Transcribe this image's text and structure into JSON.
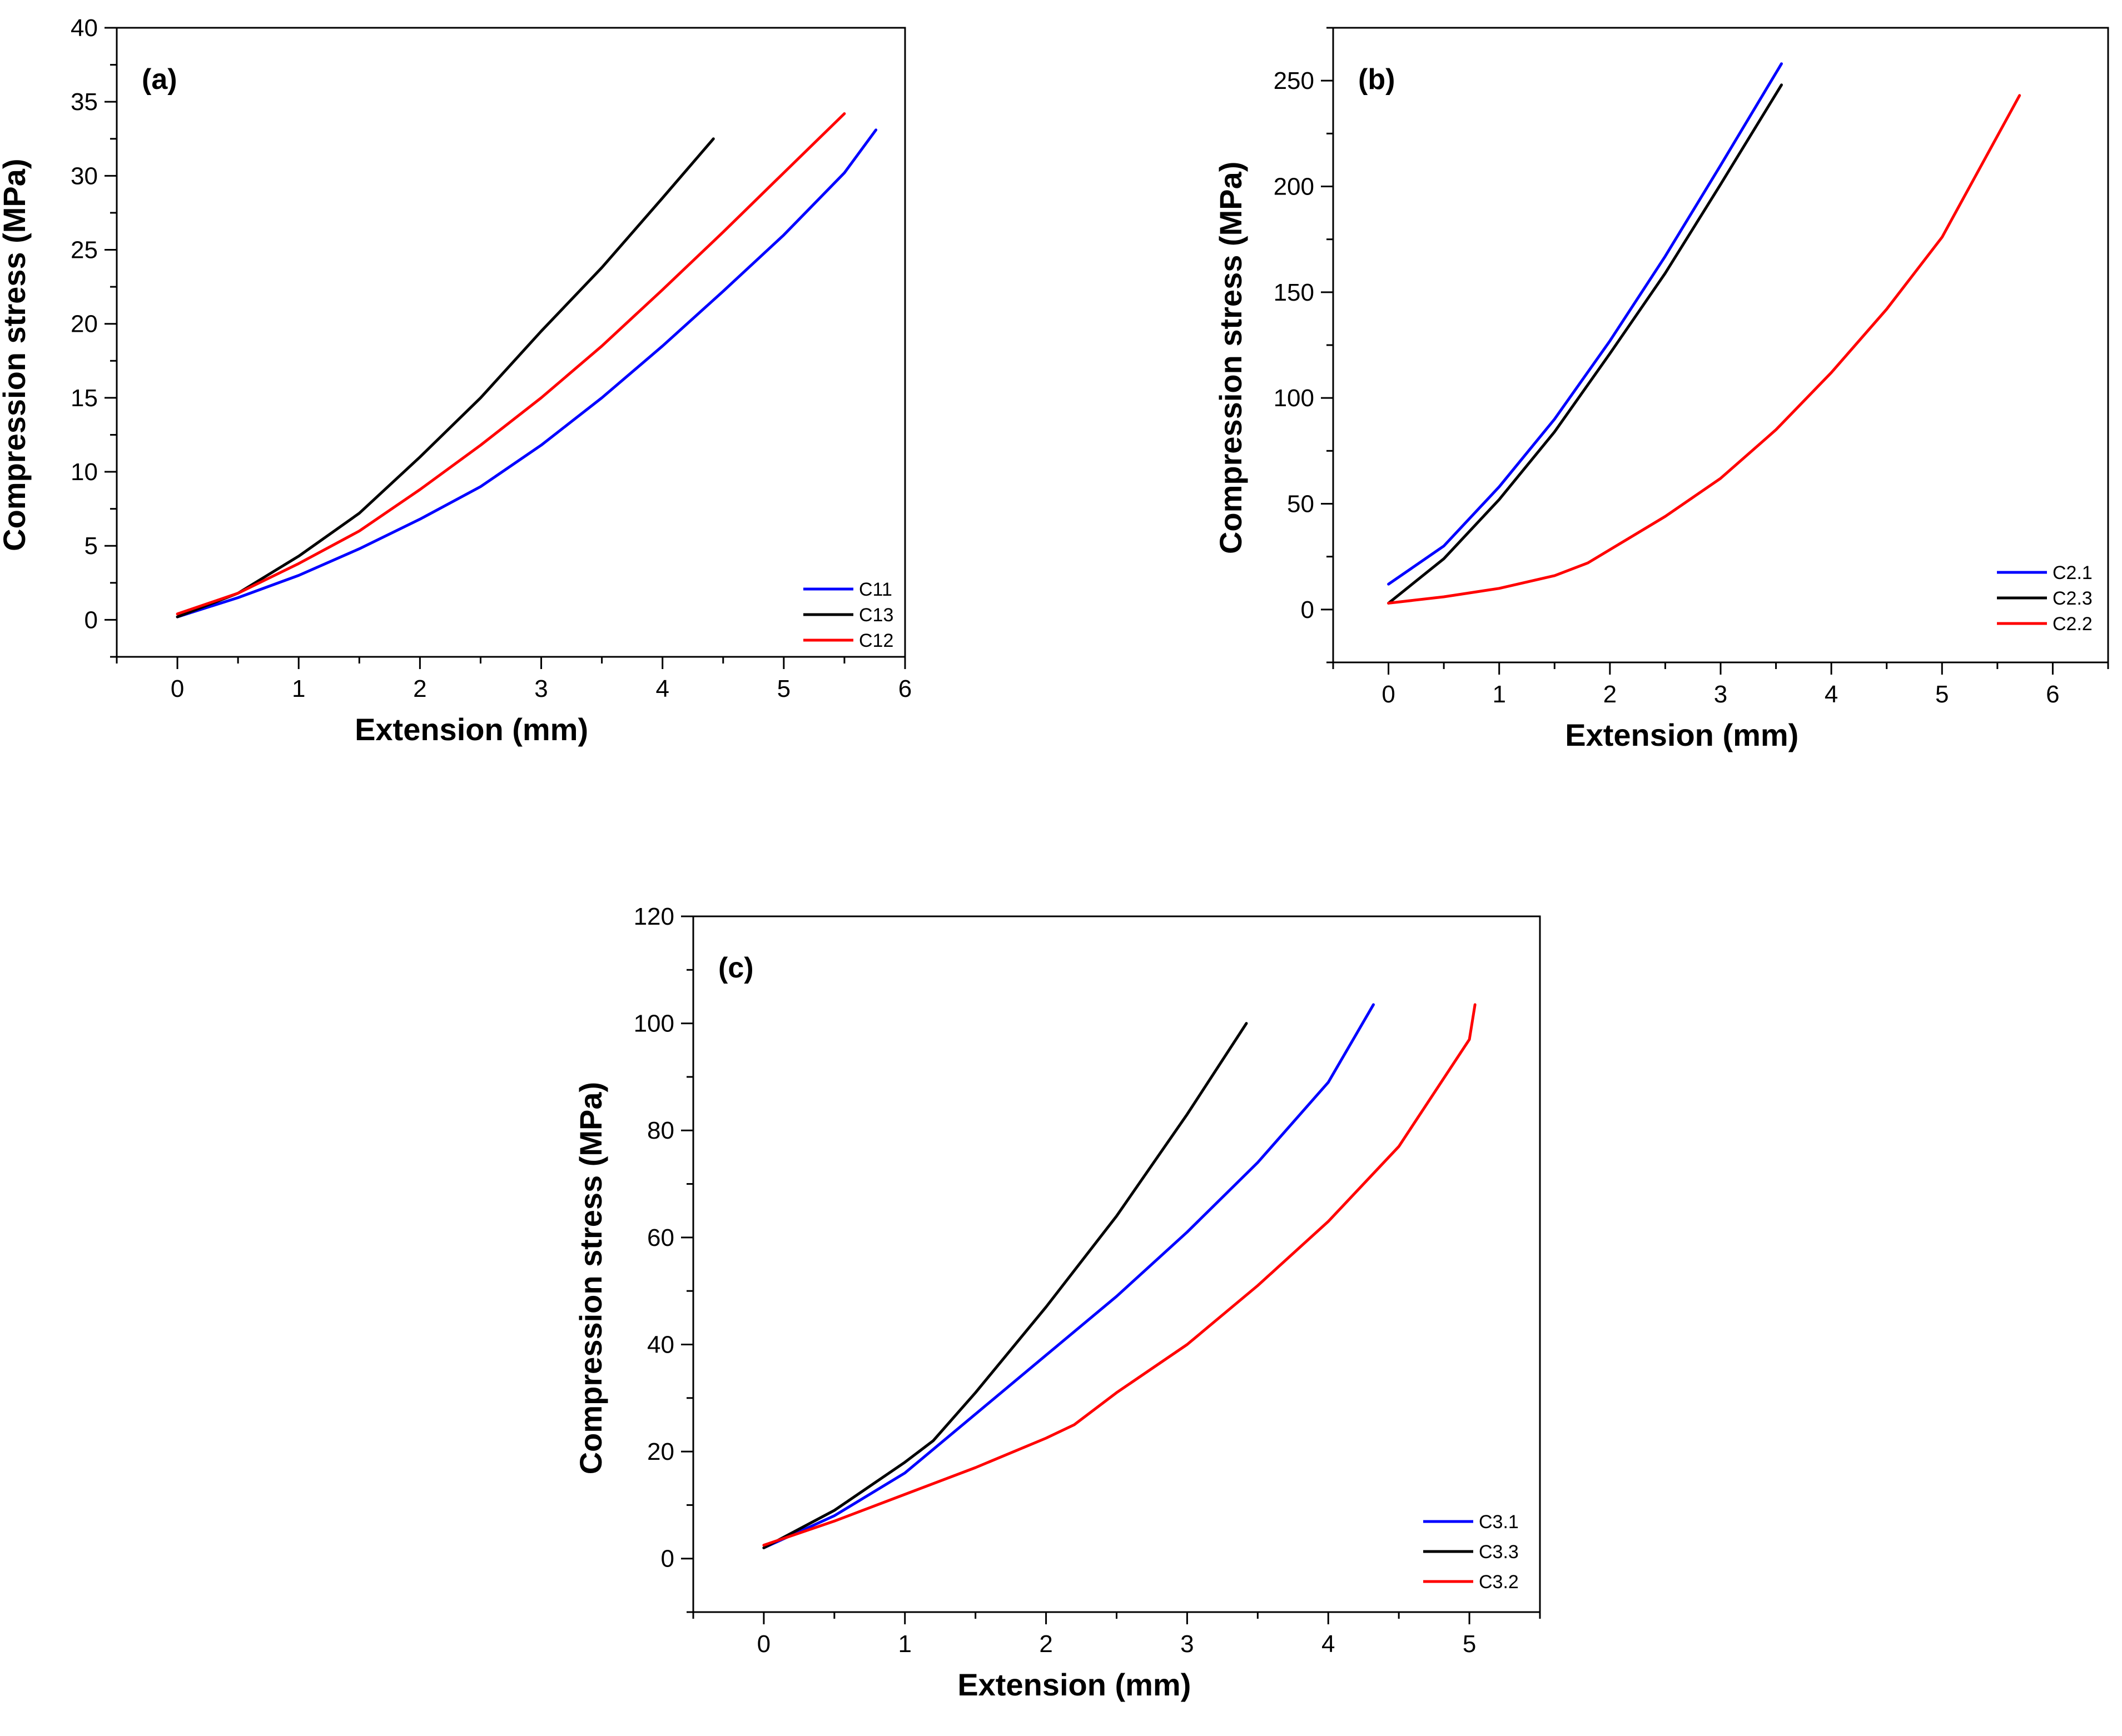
{
  "chart_data": [
    {
      "type": "line",
      "panel_label": "(a)",
      "xlabel": "Extension (mm)",
      "ylabel": "Compression stress (MPa)",
      "xlim": [
        -0.5,
        6
      ],
      "ylim": [
        -2.5,
        40
      ],
      "xticks": [
        "0",
        "1",
        "2",
        "3",
        "4",
        "5",
        "6"
      ],
      "yticks": [
        "0",
        "5",
        "10",
        "15",
        "20",
        "25",
        "30",
        "35",
        "40"
      ],
      "legend_position": "bottom-right",
      "series": [
        {
          "name": "C11",
          "color": "#0000ff",
          "x": [
            0,
            0.5,
            1,
            1.5,
            2,
            2.5,
            3,
            3.5,
            4,
            4.5,
            5,
            5.5,
            5.76
          ],
          "y": [
            0.2,
            1.5,
            3.0,
            4.8,
            6.8,
            9.0,
            11.8,
            15.0,
            18.5,
            22.2,
            26.0,
            30.2,
            33.1
          ]
        },
        {
          "name": "C13",
          "color": "#000000",
          "x": [
            0,
            0.5,
            1,
            1.5,
            2,
            2.5,
            3,
            3.5,
            4,
            4.42
          ],
          "y": [
            0.2,
            1.8,
            4.3,
            7.2,
            11.0,
            15.0,
            19.5,
            23.8,
            28.5,
            32.5
          ]
        },
        {
          "name": "C12",
          "color": "#ff0000",
          "x": [
            0,
            0.5,
            1,
            1.5,
            2,
            2.5,
            3,
            3.5,
            4,
            4.5,
            5,
            5.5
          ],
          "y": [
            0.4,
            1.8,
            3.8,
            6.0,
            8.8,
            11.8,
            15.0,
            18.5,
            22.3,
            26.2,
            30.2,
            34.2
          ]
        }
      ]
    },
    {
      "type": "line",
      "panel_label": "(b)",
      "xlabel": "Extension (mm)",
      "ylabel": "Compression stress (MPa)",
      "xlim": [
        -0.5,
        6.5
      ],
      "ylim": [
        -25,
        275
      ],
      "xticks": [
        "0",
        "1",
        "2",
        "3",
        "4",
        "5",
        "6"
      ],
      "yticks": [
        "0",
        "50",
        "100",
        "150",
        "200",
        "250"
      ],
      "legend_position": "bottom-right",
      "series": [
        {
          "name": "C2.1",
          "color": "#0000ff",
          "x": [
            0,
            0.5,
            1,
            1.5,
            2,
            2.5,
            3,
            3.55
          ],
          "y": [
            12,
            30,
            58,
            90,
            127,
            167,
            210,
            258
          ]
        },
        {
          "name": "C2.3",
          "color": "#000000",
          "x": [
            0,
            0.5,
            1,
            1.5,
            2,
            2.5,
            3,
            3.55
          ],
          "y": [
            3,
            24,
            52,
            84,
            121,
            159,
            201,
            248
          ]
        },
        {
          "name": "C2.2",
          "color": "#ff0000",
          "x": [
            0,
            0.5,
            1,
            1.5,
            1.8,
            2.5,
            3,
            3.5,
            4,
            4.5,
            5,
            5.7
          ],
          "y": [
            3,
            6,
            10,
            16,
            22,
            44,
            62,
            85,
            112,
            142,
            176,
            243
          ]
        }
      ]
    },
    {
      "type": "line",
      "panel_label": "(c)",
      "xlabel": "Extension (mm)",
      "ylabel": "Compression stress (MPa)",
      "xlim": [
        -0.5,
        5.5
      ],
      "ylim": [
        -10,
        120
      ],
      "xticks": [
        "0",
        "1",
        "2",
        "3",
        "4",
        "5"
      ],
      "yticks": [
        "0",
        "20",
        "40",
        "60",
        "80",
        "100",
        "120"
      ],
      "legend_position": "bottom-right",
      "series": [
        {
          "name": "C3.1",
          "color": "#0000ff",
          "x": [
            0,
            0.5,
            1,
            1.5,
            2,
            2.5,
            3,
            3.5,
            4,
            4.32
          ],
          "y": [
            2,
            8,
            16,
            27,
            38,
            49,
            61,
            74,
            89,
            103.5
          ]
        },
        {
          "name": "C3.3",
          "color": "#000000",
          "x": [
            0,
            0.5,
            1,
            1.2,
            1.5,
            2,
            2.5,
            3,
            3.42
          ],
          "y": [
            2,
            9,
            18,
            22,
            31,
            47,
            64,
            83,
            100
          ]
        },
        {
          "name": "C3.2",
          "color": "#ff0000",
          "x": [
            0,
            0.5,
            1,
            1.5,
            2,
            2.2,
            2.5,
            3,
            3.5,
            4,
            4.5,
            5,
            5.04
          ],
          "y": [
            2.5,
            7,
            12,
            17,
            22.5,
            25,
            31,
            40,
            51,
            63,
            77,
            97,
            103.5
          ]
        }
      ]
    }
  ]
}
